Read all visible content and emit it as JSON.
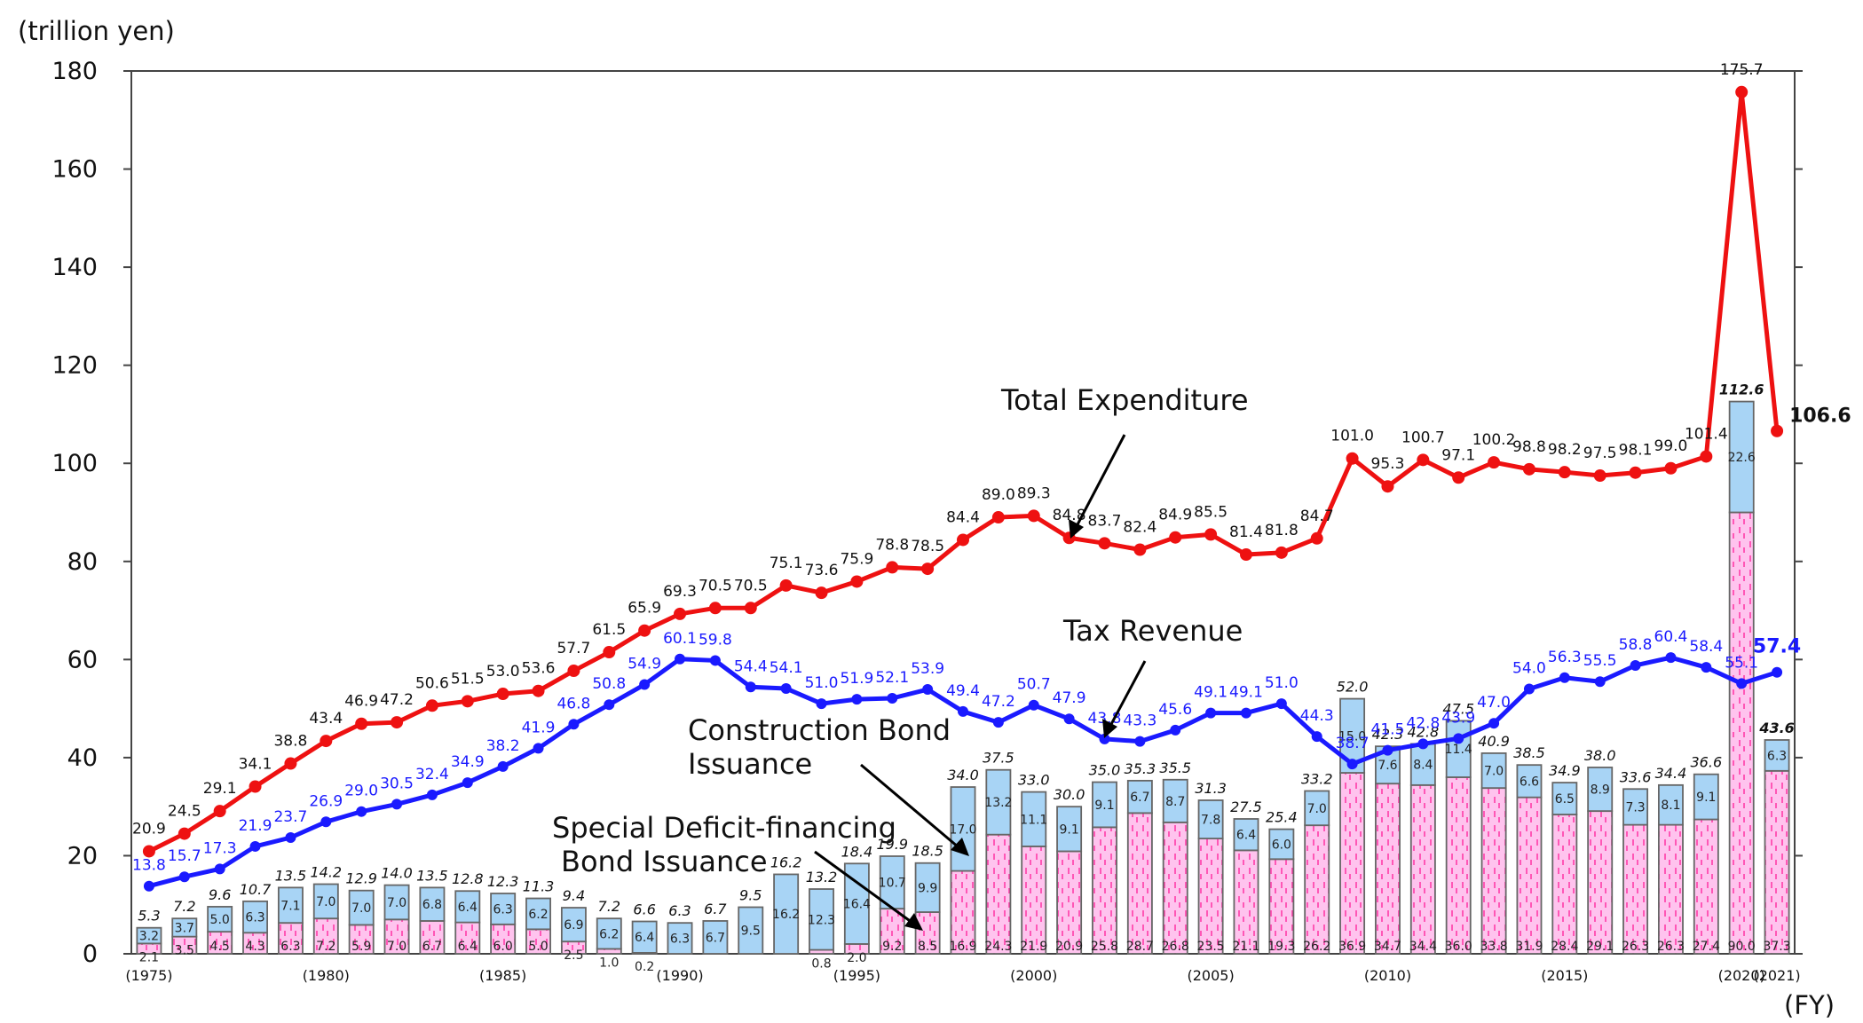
{
  "chart_data": {
    "type": "bar+line",
    "unit_label": "(trillion yen)",
    "fy_label": "(FY)",
    "y_ticks": [
      "0",
      "20",
      "40",
      "60",
      "80",
      "100",
      "120",
      "140",
      "160",
      "180"
    ],
    "ylim": [
      0,
      180
    ],
    "years": [
      1975,
      1976,
      1977,
      1978,
      1979,
      1980,
      1981,
      1982,
      1983,
      1984,
      1985,
      1986,
      1987,
      1988,
      1989,
      1990,
      1991,
      1992,
      1993,
      1994,
      1995,
      1996,
      1997,
      1998,
      1999,
      2000,
      2001,
      2002,
      2003,
      2004,
      2005,
      2006,
      2007,
      2008,
      2009,
      2010,
      2011,
      2012,
      2013,
      2014,
      2015,
      2016,
      2017,
      2018,
      2019,
      2020,
      2021
    ],
    "x_labels": [
      {
        "index": 0,
        "label": "(1975)"
      },
      {
        "index": 5,
        "label": "(1980)"
      },
      {
        "index": 10,
        "label": "(1985)"
      },
      {
        "index": 15,
        "label": "(1990)"
      },
      {
        "index": 20,
        "label": "(1995)"
      },
      {
        "index": 25,
        "label": "(2000)"
      },
      {
        "index": 30,
        "label": "(2005)"
      },
      {
        "index": 35,
        "label": "(2010)"
      },
      {
        "index": 40,
        "label": "(2015)"
      },
      {
        "index": 45,
        "label": "(2020)"
      },
      {
        "index": 46,
        "label": "(2021)"
      }
    ],
    "series": [
      {
        "name": "Total Expenditure",
        "kind": "line",
        "color": "#ee1111",
        "values": [
          20.9,
          24.5,
          29.1,
          34.1,
          38.8,
          43.4,
          46.9,
          47.2,
          50.6,
          51.5,
          53.0,
          53.6,
          57.7,
          61.5,
          65.9,
          69.3,
          70.5,
          70.5,
          75.1,
          73.6,
          75.9,
          78.8,
          78.5,
          84.4,
          89.0,
          89.3,
          84.8,
          83.7,
          82.4,
          84.9,
          85.5,
          81.4,
          81.8,
          84.7,
          101.0,
          95.3,
          100.7,
          97.1,
          100.2,
          98.8,
          98.2,
          97.5,
          98.1,
          99.0,
          101.4,
          175.7,
          106.6
        ]
      },
      {
        "name": "Tax Revenue",
        "kind": "line",
        "color": "#1a1aff",
        "values": [
          13.8,
          15.7,
          17.3,
          21.9,
          23.7,
          26.9,
          29.0,
          30.5,
          32.4,
          34.9,
          38.2,
          41.9,
          46.8,
          50.8,
          54.9,
          60.1,
          59.8,
          54.4,
          54.1,
          51.0,
          51.9,
          52.1,
          53.9,
          49.4,
          47.2,
          50.7,
          47.9,
          43.8,
          43.3,
          45.6,
          49.1,
          49.1,
          51.0,
          44.3,
          38.7,
          41.5,
          42.8,
          43.9,
          47.0,
          54.0,
          56.3,
          55.5,
          58.8,
          60.4,
          58.4,
          55.1,
          57.4
        ]
      },
      {
        "name": "Special Deficit-financing Bond Issuance",
        "kind": "bar-stack-bottom",
        "color": "#ffc3ee",
        "values": [
          2.1,
          3.5,
          4.5,
          4.3,
          6.3,
          7.2,
          5.9,
          7.0,
          6.7,
          6.4,
          6.0,
          5.0,
          2.5,
          1.0,
          0.2,
          0,
          0,
          0,
          0,
          0.8,
          2.0,
          9.2,
          8.5,
          16.9,
          24.3,
          21.9,
          20.9,
          25.8,
          28.7,
          26.8,
          23.5,
          21.1,
          19.3,
          26.2,
          36.9,
          34.7,
          34.4,
          36.0,
          33.8,
          31.9,
          28.4,
          29.1,
          26.3,
          26.3,
          27.4,
          90.0,
          37.3
        ]
      },
      {
        "name": "Construction Bond Issuance",
        "kind": "bar-stack-top",
        "color": "#a8d4f5",
        "values": [
          3.2,
          3.7,
          5.0,
          6.3,
          7.1,
          7.0,
          7.0,
          7.0,
          6.8,
          6.4,
          6.3,
          6.2,
          6.9,
          6.2,
          6.4,
          6.3,
          6.7,
          9.5,
          16.2,
          12.3,
          16.4,
          10.7,
          9.9,
          17.0,
          13.2,
          11.1,
          9.1,
          9.1,
          6.7,
          8.7,
          7.8,
          6.4,
          6.0,
          7.0,
          15.0,
          7.6,
          8.4,
          11.4,
          7.0,
          6.6,
          6.5,
          8.9,
          7.3,
          8.1,
          9.1,
          22.6,
          6.3
        ]
      }
    ],
    "bond_totals": [
      5.3,
      7.2,
      9.6,
      10.7,
      13.5,
      14.2,
      12.9,
      14.0,
      13.5,
      12.8,
      12.3,
      11.3,
      9.4,
      7.2,
      6.6,
      6.3,
      6.7,
      9.5,
      16.2,
      13.2,
      18.4,
      19.9,
      18.5,
      34.0,
      37.5,
      33.0,
      30.0,
      35.0,
      35.3,
      35.5,
      31.3,
      27.5,
      25.4,
      33.2,
      52.0,
      42.3,
      42.8,
      47.5,
      40.9,
      38.5,
      34.9,
      38.0,
      33.6,
      34.4,
      36.6,
      112.6,
      43.6
    ],
    "annotations": {
      "total_expenditure": "Total Expenditure",
      "tax_revenue": "Tax Revenue",
      "construction_line1": "Construction Bond",
      "construction_line2": "Issuance",
      "special_line1": "Special Deficit-financing",
      "special_line2": "Bond Issuance"
    },
    "grid": false
  }
}
